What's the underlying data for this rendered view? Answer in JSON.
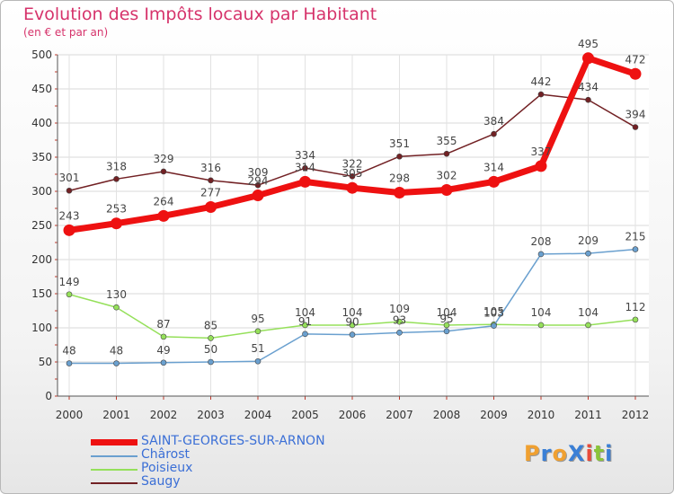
{
  "title": "Evolution des Impôts locaux par Habitant",
  "subtitle": "(en € et par an)",
  "logo": {
    "text": "ProXiti",
    "letter_colors": [
      "#f0a030",
      "#3a7fd6",
      "#f0a030",
      "#3a7fd6",
      "#e84a3a",
      "#8ac43a",
      "#3a7fd6"
    ]
  },
  "chart_data": {
    "type": "line",
    "categories": [
      "2000",
      "2001",
      "2002",
      "2003",
      "2004",
      "2005",
      "2006",
      "2007",
      "2008",
      "2009",
      "2010",
      "2011",
      "2012"
    ],
    "yticks": [
      "0",
      "50",
      "100",
      "150",
      "200",
      "250",
      "300",
      "350",
      "400",
      "450",
      "500"
    ],
    "ylim": [
      0,
      500
    ],
    "grid": true,
    "legend_position": "bottom-left",
    "series": [
      {
        "name": "Saugy",
        "color": "#722124",
        "weight": "thin",
        "values": [
          301,
          318,
          329,
          316,
          309,
          334,
          322,
          351,
          355,
          384,
          442,
          434,
          394
        ],
        "labels": [
          "301",
          "318",
          "329",
          "316",
          "309",
          "334",
          "322",
          "351",
          "355",
          "384",
          "442",
          "434",
          "394"
        ]
      },
      {
        "name": "Poisieux",
        "color": "#95e05a",
        "weight": "thin",
        "values": [
          149,
          130,
          87,
          85,
          95,
          104,
          104,
          109,
          104,
          105,
          104,
          104,
          112
        ],
        "labels": [
          "149",
          "130",
          "87",
          "85",
          "95",
          "104",
          "104",
          "109",
          "104",
          "105",
          "104",
          "104",
          "112"
        ]
      },
      {
        "name": "Chârost",
        "color": "#6aa0cf",
        "weight": "thin",
        "values": [
          48,
          48,
          49,
          50,
          51,
          91,
          90,
          93,
          95,
          103,
          208,
          209,
          215
        ],
        "labels": [
          "48",
          "48",
          "49",
          "50",
          "51",
          "91",
          "90",
          "93",
          "95",
          "103",
          "208",
          "209",
          "215"
        ]
      },
      {
        "name": "SAINT-GEORGES-SUR-ARNON",
        "color": "#ee1111",
        "weight": "thick",
        "values": [
          243,
          253,
          264,
          277,
          294,
          314,
          305,
          298,
          302,
          314,
          337,
          495,
          472
        ],
        "labels": [
          "243",
          "253",
          "264",
          "277",
          "294",
          "314",
          "305",
          "298",
          "302",
          "314",
          "337",
          "495",
          "472"
        ]
      }
    ]
  }
}
